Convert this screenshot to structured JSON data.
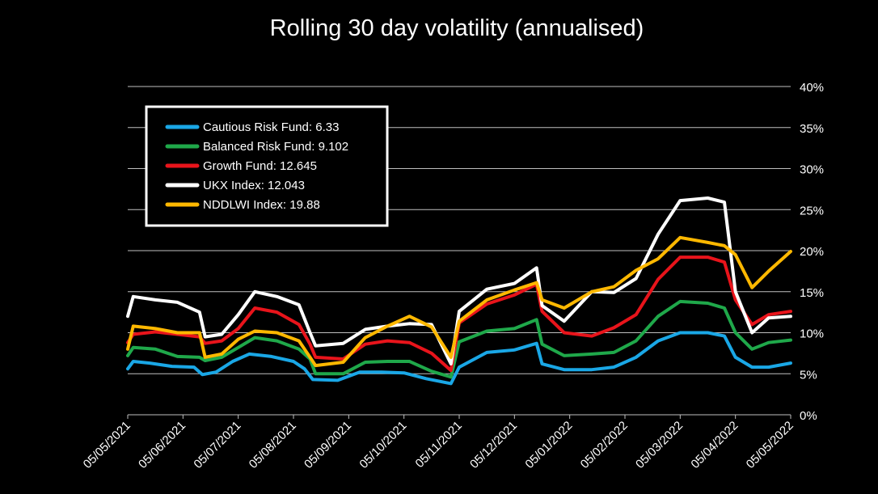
{
  "chart_data": {
    "type": "line",
    "title": "Rolling 30 day volatility (annualised)",
    "xlabel": "",
    "ylabel": "",
    "x_ticks": [
      "05/05/2021",
      "05/06/2021",
      "05/07/2021",
      "05/08/2021",
      "05/09/2021",
      "05/10/2021",
      "05/11/2021",
      "05/12/2021",
      "05/01/2022",
      "05/02/2022",
      "05/03/2022",
      "05/04/2022",
      "05/05/2022"
    ],
    "y_ticks": [
      "0%",
      "5%",
      "10%",
      "15%",
      "20%",
      "25%",
      "30%",
      "35%",
      "40%"
    ],
    "ylim": [
      0,
      40
    ],
    "grid": "horizontal",
    "legend_position": "top-left",
    "colors": {
      "background": "#000000",
      "text": "#ffffff",
      "grid": "#bfbfbf",
      "legend_border": "#ffffff"
    },
    "series": [
      {
        "name": "Cautious Risk Fund: 6.33",
        "color": "#1aa7e6",
        "points": [
          [
            0,
            5.6
          ],
          [
            0.1,
            6.5
          ],
          [
            0.4,
            6.3
          ],
          [
            0.8,
            5.9
          ],
          [
            1.2,
            5.8
          ],
          [
            1.35,
            4.9
          ],
          [
            1.6,
            5.2
          ],
          [
            1.9,
            6.5
          ],
          [
            2.2,
            7.4
          ],
          [
            2.6,
            7.1
          ],
          [
            3.0,
            6.5
          ],
          [
            3.2,
            5.6
          ],
          [
            3.35,
            4.3
          ],
          [
            3.8,
            4.2
          ],
          [
            4.2,
            5.2
          ],
          [
            4.6,
            5.2
          ],
          [
            5.0,
            5.1
          ],
          [
            5.4,
            4.4
          ],
          [
            5.85,
            3.8
          ],
          [
            6.0,
            5.8
          ],
          [
            6.5,
            7.6
          ],
          [
            7.0,
            7.9
          ],
          [
            7.4,
            8.7
          ],
          [
            7.5,
            6.2
          ],
          [
            7.9,
            5.5
          ],
          [
            8.4,
            5.5
          ],
          [
            8.8,
            5.8
          ],
          [
            9.2,
            7.0
          ],
          [
            9.6,
            9.0
          ],
          [
            10.0,
            10.0
          ],
          [
            10.5,
            10.0
          ],
          [
            10.8,
            9.6
          ],
          [
            11.0,
            7.0
          ],
          [
            11.3,
            5.8
          ],
          [
            11.6,
            5.8
          ],
          [
            12.0,
            6.3
          ]
        ]
      },
      {
        "name": "Balanced Risk Fund: 9.102",
        "color": "#1fa84a",
        "points": [
          [
            0,
            7.2
          ],
          [
            0.1,
            8.2
          ],
          [
            0.5,
            8.0
          ],
          [
            0.9,
            7.1
          ],
          [
            1.3,
            7.0
          ],
          [
            1.4,
            6.6
          ],
          [
            1.7,
            7.0
          ],
          [
            2.0,
            8.2
          ],
          [
            2.3,
            9.4
          ],
          [
            2.7,
            9.0
          ],
          [
            3.1,
            8.0
          ],
          [
            3.3,
            6.8
          ],
          [
            3.4,
            5.0
          ],
          [
            3.9,
            5.0
          ],
          [
            4.3,
            6.4
          ],
          [
            4.7,
            6.5
          ],
          [
            5.1,
            6.5
          ],
          [
            5.5,
            5.3
          ],
          [
            5.85,
            4.6
          ],
          [
            6.0,
            8.9
          ],
          [
            6.5,
            10.2
          ],
          [
            7.0,
            10.5
          ],
          [
            7.4,
            11.6
          ],
          [
            7.5,
            8.6
          ],
          [
            7.9,
            7.2
          ],
          [
            8.4,
            7.4
          ],
          [
            8.8,
            7.6
          ],
          [
            9.2,
            9.0
          ],
          [
            9.6,
            12.0
          ],
          [
            10.0,
            13.8
          ],
          [
            10.5,
            13.6
          ],
          [
            10.8,
            13.0
          ],
          [
            11.0,
            10.0
          ],
          [
            11.3,
            8.0
          ],
          [
            11.6,
            8.8
          ],
          [
            12.0,
            9.1
          ]
        ]
      },
      {
        "name": "Growth Fund: 12.645",
        "color": "#e8141b",
        "points": [
          [
            0,
            8.8
          ],
          [
            0.1,
            9.8
          ],
          [
            0.5,
            10.1
          ],
          [
            0.9,
            9.8
          ],
          [
            1.3,
            9.5
          ],
          [
            1.4,
            8.7
          ],
          [
            1.7,
            9.0
          ],
          [
            2.0,
            10.5
          ],
          [
            2.3,
            13.0
          ],
          [
            2.7,
            12.5
          ],
          [
            3.1,
            11.0
          ],
          [
            3.3,
            8.6
          ],
          [
            3.4,
            7.0
          ],
          [
            3.9,
            6.8
          ],
          [
            4.3,
            8.6
          ],
          [
            4.7,
            9.0
          ],
          [
            5.1,
            8.8
          ],
          [
            5.5,
            7.5
          ],
          [
            5.85,
            5.4
          ],
          [
            6.0,
            11.2
          ],
          [
            6.5,
            13.5
          ],
          [
            7.0,
            14.6
          ],
          [
            7.4,
            15.9
          ],
          [
            7.5,
            12.6
          ],
          [
            7.9,
            10.0
          ],
          [
            8.4,
            9.6
          ],
          [
            8.8,
            10.6
          ],
          [
            9.2,
            12.2
          ],
          [
            9.6,
            16.5
          ],
          [
            10.0,
            19.2
          ],
          [
            10.5,
            19.2
          ],
          [
            10.8,
            18.6
          ],
          [
            11.0,
            14.0
          ],
          [
            11.3,
            11.0
          ],
          [
            11.6,
            12.2
          ],
          [
            12.0,
            12.6
          ]
        ]
      },
      {
        "name": "UKX Index: 12.043",
        "color": "#ffffff",
        "points": [
          [
            0,
            12.0
          ],
          [
            0.1,
            14.4
          ],
          [
            0.5,
            14.0
          ],
          [
            0.9,
            13.7
          ],
          [
            1.3,
            12.5
          ],
          [
            1.4,
            9.5
          ],
          [
            1.7,
            9.8
          ],
          [
            2.0,
            12.2
          ],
          [
            2.3,
            15.0
          ],
          [
            2.7,
            14.4
          ],
          [
            3.1,
            13.4
          ],
          [
            3.3,
            10.0
          ],
          [
            3.4,
            8.4
          ],
          [
            3.9,
            8.7
          ],
          [
            4.3,
            10.4
          ],
          [
            4.7,
            10.8
          ],
          [
            5.1,
            11.1
          ],
          [
            5.5,
            11.0
          ],
          [
            5.85,
            6.2
          ],
          [
            6.0,
            12.6
          ],
          [
            6.5,
            15.3
          ],
          [
            7.0,
            16.0
          ],
          [
            7.4,
            17.9
          ],
          [
            7.5,
            13.3
          ],
          [
            7.9,
            11.4
          ],
          [
            8.4,
            15.0
          ],
          [
            8.8,
            14.9
          ],
          [
            9.2,
            16.6
          ],
          [
            9.6,
            22.0
          ],
          [
            10.0,
            26.1
          ],
          [
            10.5,
            26.4
          ],
          [
            10.8,
            25.9
          ],
          [
            11.0,
            15.0
          ],
          [
            11.3,
            10.0
          ],
          [
            11.6,
            11.8
          ],
          [
            12.0,
            12.0
          ]
        ]
      },
      {
        "name": "NDDLWI Index: 19.88",
        "color": "#ffb800",
        "points": [
          [
            0,
            8.0
          ],
          [
            0.1,
            10.8
          ],
          [
            0.5,
            10.5
          ],
          [
            0.9,
            10.0
          ],
          [
            1.3,
            10.0
          ],
          [
            1.4,
            7.0
          ],
          [
            1.7,
            7.4
          ],
          [
            2.0,
            9.2
          ],
          [
            2.3,
            10.2
          ],
          [
            2.7,
            10.0
          ],
          [
            3.1,
            9.0
          ],
          [
            3.3,
            7.0
          ],
          [
            3.4,
            6.0
          ],
          [
            3.9,
            6.4
          ],
          [
            4.3,
            9.4
          ],
          [
            4.7,
            10.8
          ],
          [
            5.1,
            12.0
          ],
          [
            5.5,
            10.7
          ],
          [
            5.85,
            7.0
          ],
          [
            6.0,
            11.4
          ],
          [
            6.5,
            14.0
          ],
          [
            7.0,
            15.2
          ],
          [
            7.4,
            16.1
          ],
          [
            7.5,
            14.0
          ],
          [
            7.9,
            13.0
          ],
          [
            8.4,
            15.0
          ],
          [
            8.8,
            15.6
          ],
          [
            9.2,
            17.6
          ],
          [
            9.6,
            19.0
          ],
          [
            10.0,
            21.6
          ],
          [
            10.5,
            21.0
          ],
          [
            10.8,
            20.6
          ],
          [
            11.0,
            19.5
          ],
          [
            11.3,
            15.5
          ],
          [
            11.6,
            17.5
          ],
          [
            12.0,
            19.9
          ]
        ]
      }
    ]
  }
}
